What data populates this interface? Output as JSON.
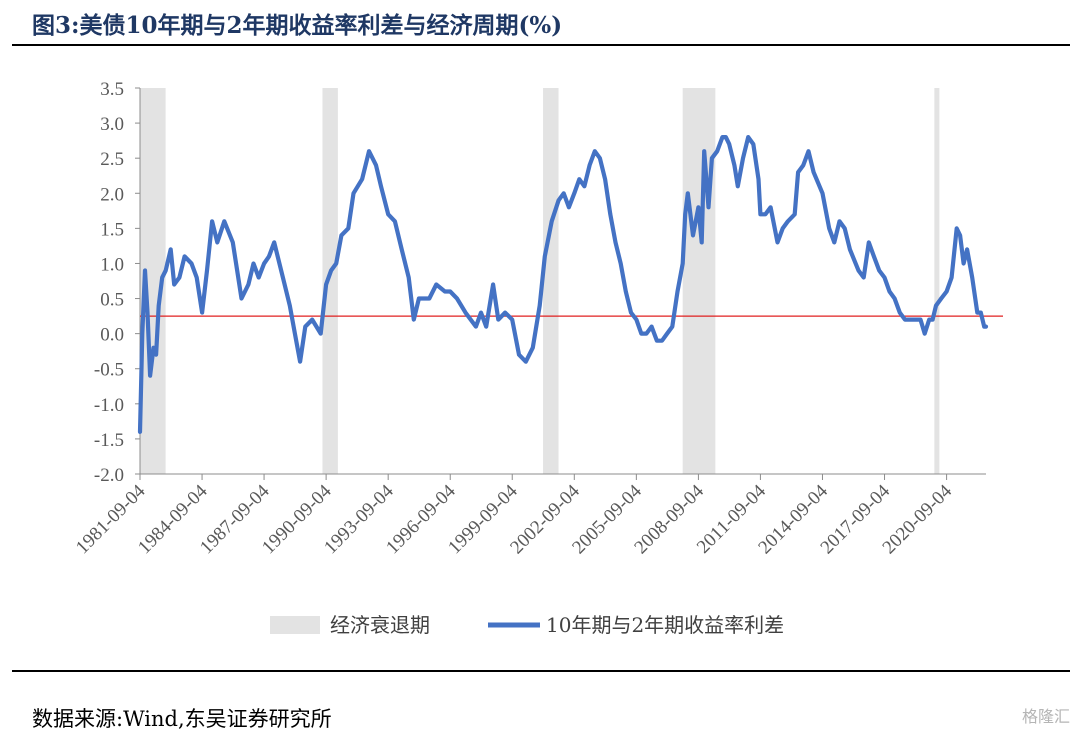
{
  "figure": {
    "title": "图3:美债10年期与2年期收益率利差与经济周期(%)",
    "source": "数据来源:Wind,东吴证券研究所",
    "watermark": "格隆汇"
  },
  "chart_data": {
    "type": "line",
    "title": "图3:美债10年期与2年期收益率利差与经济周期(%)",
    "xlabel": "",
    "ylabel": "",
    "ylim": [
      -2.0,
      3.5
    ],
    "xlim": [
      "1981-09-04",
      "2022-08-01"
    ],
    "y_ticks": [
      "3.5",
      "3.0",
      "2.5",
      "2.0",
      "1.5",
      "1.0",
      "0.5",
      "0.0",
      "-0.5",
      "-1.0",
      "-1.5",
      "-2.0"
    ],
    "x_ticks": [
      "1981-09-04",
      "1984-09-04",
      "1987-09-04",
      "1990-09-04",
      "1993-09-04",
      "1996-09-04",
      "1999-09-04",
      "2002-09-04",
      "2005-09-04",
      "2008-09-04",
      "2011-09-04",
      "2014-09-04",
      "2017-09-04",
      "2020-09-04"
    ],
    "grid": false,
    "legend_position": "bottom",
    "reference_line": {
      "value": 0.25,
      "color": "#e02020"
    },
    "recessions": {
      "name": "经济衰退期",
      "color": "#e3e3e3",
      "periods": [
        [
          "1981-09-01",
          "1982-11-30"
        ],
        [
          "1990-07-01",
          "1991-03-31"
        ],
        [
          "2001-03-01",
          "2001-11-30"
        ],
        [
          "2007-12-01",
          "2009-06-30"
        ],
        [
          "2020-02-01",
          "2020-04-30"
        ]
      ]
    },
    "series": [
      {
        "name": "10年期与2年期收益率利差",
        "color": "#4472c4",
        "points": [
          [
            "1981-09-04",
            -1.4
          ],
          [
            "1981-10-15",
            0.0
          ],
          [
            "1981-12-01",
            0.9
          ],
          [
            "1982-01-15",
            0.3
          ],
          [
            "1982-03-01",
            -0.6
          ],
          [
            "1982-05-01",
            -0.2
          ],
          [
            "1982-06-15",
            -0.3
          ],
          [
            "1982-08-01",
            0.4
          ],
          [
            "1982-10-01",
            0.8
          ],
          [
            "1982-12-01",
            0.9
          ],
          [
            "1983-03-01",
            1.2
          ],
          [
            "1983-05-01",
            0.7
          ],
          [
            "1983-08-01",
            0.8
          ],
          [
            "1983-11-01",
            1.1
          ],
          [
            "1984-03-01",
            1.0
          ],
          [
            "1984-06-01",
            0.8
          ],
          [
            "1984-09-04",
            0.3
          ],
          [
            "1984-12-01",
            0.9
          ],
          [
            "1985-03-01",
            1.6
          ],
          [
            "1985-06-01",
            1.3
          ],
          [
            "1985-10-01",
            1.6
          ],
          [
            "1986-03-01",
            1.3
          ],
          [
            "1986-08-01",
            0.5
          ],
          [
            "1986-12-01",
            0.7
          ],
          [
            "1987-03-01",
            1.0
          ],
          [
            "1987-06-01",
            0.8
          ],
          [
            "1987-09-04",
            1.0
          ],
          [
            "1987-12-01",
            1.1
          ],
          [
            "1988-03-01",
            1.3
          ],
          [
            "1988-08-01",
            0.8
          ],
          [
            "1988-12-01",
            0.4
          ],
          [
            "1989-03-01",
            0.0
          ],
          [
            "1989-06-01",
            -0.4
          ],
          [
            "1989-09-01",
            0.1
          ],
          [
            "1990-01-01",
            0.2
          ],
          [
            "1990-06-01",
            0.0
          ],
          [
            "1990-09-04",
            0.7
          ],
          [
            "1990-12-01",
            0.9
          ],
          [
            "1991-03-01",
            1.0
          ],
          [
            "1991-06-01",
            1.4
          ],
          [
            "1991-10-01",
            1.5
          ],
          [
            "1992-01-01",
            2.0
          ],
          [
            "1992-06-01",
            2.2
          ],
          [
            "1992-10-01",
            2.6
          ],
          [
            "1993-02-01",
            2.4
          ],
          [
            "1993-05-01",
            2.1
          ],
          [
            "1993-09-04",
            1.7
          ],
          [
            "1994-01-01",
            1.6
          ],
          [
            "1994-05-01",
            1.2
          ],
          [
            "1994-09-01",
            0.8
          ],
          [
            "1994-12-01",
            0.2
          ],
          [
            "1995-03-01",
            0.5
          ],
          [
            "1995-09-01",
            0.5
          ],
          [
            "1996-01-01",
            0.7
          ],
          [
            "1996-06-01",
            0.6
          ],
          [
            "1996-09-04",
            0.6
          ],
          [
            "1997-01-01",
            0.5
          ],
          [
            "1997-06-01",
            0.3
          ],
          [
            "1997-12-01",
            0.1
          ],
          [
            "1998-03-01",
            0.3
          ],
          [
            "1998-06-01",
            0.1
          ],
          [
            "1998-10-01",
            0.7
          ],
          [
            "1999-01-01",
            0.2
          ],
          [
            "1999-05-01",
            0.3
          ],
          [
            "1999-09-04",
            0.2
          ],
          [
            "2000-01-01",
            -0.3
          ],
          [
            "2000-05-01",
            -0.4
          ],
          [
            "2000-09-01",
            -0.2
          ],
          [
            "2001-01-01",
            0.4
          ],
          [
            "2001-04-01",
            1.1
          ],
          [
            "2001-08-01",
            1.6
          ],
          [
            "2001-12-01",
            1.9
          ],
          [
            "2002-03-01",
            2.0
          ],
          [
            "2002-06-01",
            1.8
          ],
          [
            "2002-09-04",
            2.0
          ],
          [
            "2002-12-01",
            2.2
          ],
          [
            "2003-03-01",
            2.1
          ],
          [
            "2003-06-01",
            2.4
          ],
          [
            "2003-09-01",
            2.6
          ],
          [
            "2003-12-01",
            2.5
          ],
          [
            "2004-03-01",
            2.2
          ],
          [
            "2004-06-01",
            1.7
          ],
          [
            "2004-09-01",
            1.3
          ],
          [
            "2004-12-01",
            1.0
          ],
          [
            "2005-03-01",
            0.6
          ],
          [
            "2005-06-01",
            0.3
          ],
          [
            "2005-09-04",
            0.2
          ],
          [
            "2005-12-01",
            0.0
          ],
          [
            "2006-03-01",
            0.0
          ],
          [
            "2006-06-01",
            0.1
          ],
          [
            "2006-09-01",
            -0.1
          ],
          [
            "2006-12-01",
            -0.1
          ],
          [
            "2007-03-01",
            0.0
          ],
          [
            "2007-06-01",
            0.1
          ],
          [
            "2007-09-01",
            0.6
          ],
          [
            "2007-12-01",
            1.0
          ],
          [
            "2008-01-15",
            1.7
          ],
          [
            "2008-03-01",
            2.0
          ],
          [
            "2008-06-01",
            1.4
          ],
          [
            "2008-09-04",
            1.8
          ],
          [
            "2008-11-01",
            1.3
          ],
          [
            "2008-12-15",
            2.6
          ],
          [
            "2009-03-01",
            1.8
          ],
          [
            "2009-05-01",
            2.5
          ],
          [
            "2009-08-01",
            2.6
          ],
          [
            "2009-11-01",
            2.8
          ],
          [
            "2010-01-01",
            2.8
          ],
          [
            "2010-03-01",
            2.7
          ],
          [
            "2010-06-01",
            2.4
          ],
          [
            "2010-08-01",
            2.1
          ],
          [
            "2010-11-01",
            2.5
          ],
          [
            "2011-02-01",
            2.8
          ],
          [
            "2011-05-01",
            2.7
          ],
          [
            "2011-08-01",
            2.2
          ],
          [
            "2011-09-04",
            1.7
          ],
          [
            "2011-12-01",
            1.7
          ],
          [
            "2012-03-01",
            1.8
          ],
          [
            "2012-07-01",
            1.3
          ],
          [
            "2012-10-01",
            1.5
          ],
          [
            "2013-01-01",
            1.6
          ],
          [
            "2013-05-01",
            1.7
          ],
          [
            "2013-07-01",
            2.3
          ],
          [
            "2013-10-01",
            2.4
          ],
          [
            "2014-01-01",
            2.6
          ],
          [
            "2014-04-01",
            2.3
          ],
          [
            "2014-09-04",
            2.0
          ],
          [
            "2015-01-01",
            1.5
          ],
          [
            "2015-04-01",
            1.3
          ],
          [
            "2015-07-01",
            1.6
          ],
          [
            "2015-10-01",
            1.5
          ],
          [
            "2016-01-01",
            1.2
          ],
          [
            "2016-06-01",
            0.9
          ],
          [
            "2016-09-01",
            0.8
          ],
          [
            "2016-12-01",
            1.3
          ],
          [
            "2017-03-01",
            1.1
          ],
          [
            "2017-06-01",
            0.9
          ],
          [
            "2017-09-04",
            0.8
          ],
          [
            "2017-12-01",
            0.6
          ],
          [
            "2018-03-01",
            0.5
          ],
          [
            "2018-06-01",
            0.3
          ],
          [
            "2018-09-01",
            0.2
          ],
          [
            "2018-12-01",
            0.2
          ],
          [
            "2019-03-01",
            0.2
          ],
          [
            "2019-06-01",
            0.2
          ],
          [
            "2019-08-15",
            0.0
          ],
          [
            "2019-11-01",
            0.2
          ],
          [
            "2020-01-01",
            0.2
          ],
          [
            "2020-03-01",
            0.4
          ],
          [
            "2020-06-01",
            0.5
          ],
          [
            "2020-09-04",
            0.6
          ],
          [
            "2020-12-01",
            0.8
          ],
          [
            "2021-03-01",
            1.5
          ],
          [
            "2021-05-01",
            1.4
          ],
          [
            "2021-07-01",
            1.0
          ],
          [
            "2021-09-01",
            1.2
          ],
          [
            "2021-12-01",
            0.8
          ],
          [
            "2022-03-01",
            0.3
          ],
          [
            "2022-05-01",
            0.3
          ],
          [
            "2022-07-01",
            0.1
          ],
          [
            "2022-08-01",
            0.1
          ]
        ]
      }
    ]
  }
}
